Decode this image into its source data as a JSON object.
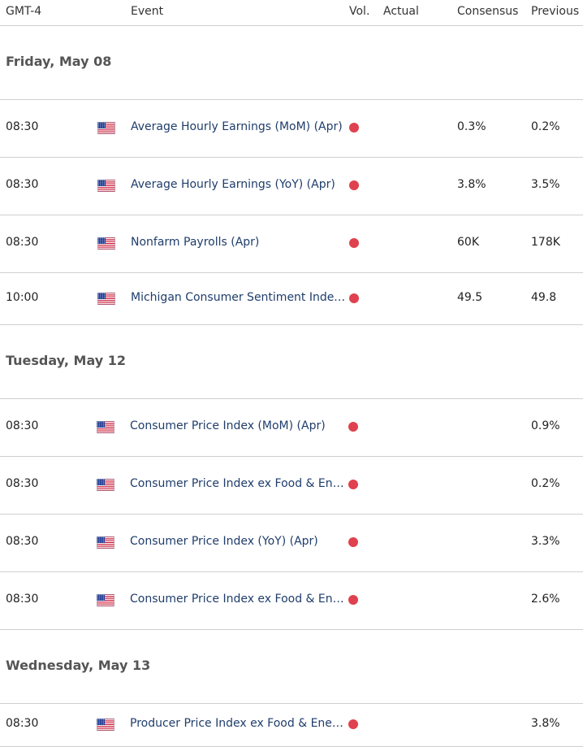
{
  "header": {
    "timezone": "GMT-4",
    "event": "Event",
    "vol": "Vol.",
    "actual": "Actual",
    "consensus": "Consensus",
    "previous": "Previous"
  },
  "colors": {
    "event_text": "#1f3d6b",
    "volatility_dot": "#e0414e",
    "divider": "#cfcfcf"
  },
  "sections": [
    {
      "title": "Friday, May 08",
      "events": [
        {
          "time": "08:30",
          "country_icon": "us-flag-icon",
          "event": "Average Hourly Earnings (MoM) (Apr)",
          "actual": "",
          "consensus": "0.3%",
          "previous": "0.2%"
        },
        {
          "time": "08:30",
          "country_icon": "us-flag-icon",
          "event": "Average Hourly Earnings (YoY) (Apr)",
          "actual": "",
          "consensus": "3.8%",
          "previous": "3.5%"
        },
        {
          "time": "08:30",
          "country_icon": "us-flag-icon",
          "event": "Nonfarm Payrolls (Apr)",
          "actual": "",
          "consensus": "60K",
          "previous": "178K"
        },
        {
          "time": "10:00",
          "country_icon": "us-flag-icon",
          "event": "Michigan Consumer Sentiment Index…",
          "actual": "",
          "consensus": "49.5",
          "previous": "49.8"
        }
      ]
    },
    {
      "title": "Tuesday, May 12",
      "events": [
        {
          "time": "08:30",
          "country_icon": "us-flag-icon",
          "event": "Consumer Price Index (MoM) (Apr)",
          "actual": "",
          "consensus": "",
          "previous": "0.9%"
        },
        {
          "time": "08:30",
          "country_icon": "us-flag-icon",
          "event": "Consumer Price Index ex Food & Ener…",
          "actual": "",
          "consensus": "",
          "previous": "0.2%"
        },
        {
          "time": "08:30",
          "country_icon": "us-flag-icon",
          "event": "Consumer Price Index (YoY) (Apr)",
          "actual": "",
          "consensus": "",
          "previous": "3.3%"
        },
        {
          "time": "08:30",
          "country_icon": "us-flag-icon",
          "event": "Consumer Price Index ex Food & Ener…",
          "actual": "",
          "consensus": "",
          "previous": "2.6%"
        }
      ]
    },
    {
      "title": "Wednesday, May 13",
      "events": [
        {
          "time": "08:30",
          "country_icon": "us-flag-icon",
          "event": "Producer Price Index ex Food & Energ…",
          "actual": "",
          "consensus": "",
          "previous": "3.8%"
        }
      ]
    }
  ]
}
